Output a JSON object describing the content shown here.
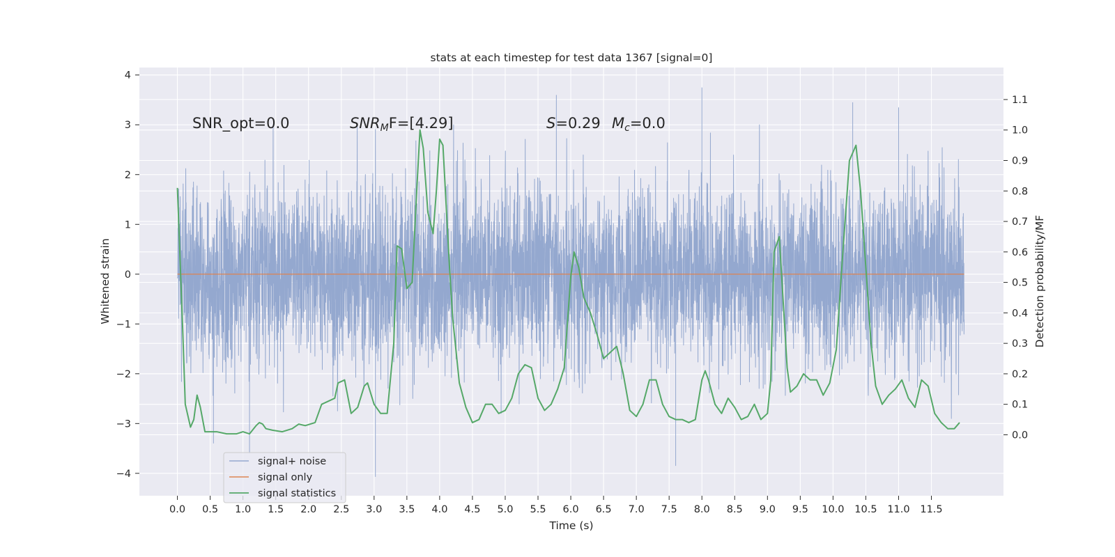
{
  "chart_data": {
    "type": "line",
    "title": "stats at each timestep for test data 1367 [signal=0]",
    "xlabel": "Time (s)",
    "ylabel": "Whitened strain",
    "y2label": "Detection probability/MF",
    "xlim": [
      -0.58,
      12.6
    ],
    "ylim": [
      -4.45,
      4.15
    ],
    "y2lim": [
      -0.2,
      1.205
    ],
    "x_ticks": [
      0.0,
      0.5,
      1.0,
      1.5,
      2.0,
      2.5,
      3.0,
      3.5,
      4.0,
      4.5,
      5.0,
      5.5,
      6.0,
      6.5,
      7.0,
      7.5,
      8.0,
      8.5,
      9.0,
      9.5,
      10.0,
      10.5,
      11.0,
      11.5
    ],
    "x_tick_labels": [
      "0.0",
      "0.5",
      "1.0",
      "1.5",
      "2.0",
      "2.5",
      "3.0",
      "3.5",
      "4.0",
      "4.5",
      "5.0",
      "5.5",
      "6.0",
      "6.5",
      "7.0",
      "7.5",
      "8.0",
      "8.5",
      "9.0",
      "9.5",
      "10.0",
      "10.5",
      "11.0",
      "11.5"
    ],
    "y_ticks": [
      -4,
      -3,
      -2,
      -1,
      0,
      1,
      2,
      3,
      4
    ],
    "y_tick_labels": [
      "−4",
      "−3",
      "−2",
      "−1",
      "0",
      "1",
      "2",
      "3",
      "4"
    ],
    "y2_ticks": [
      0.0,
      0.1,
      0.2,
      0.3,
      0.4,
      0.5,
      0.6,
      0.7,
      0.8,
      0.9,
      1.0,
      1.1
    ],
    "y2_tick_labels": [
      "0.0",
      "0.1",
      "0.2",
      "0.3",
      "0.4",
      "0.5",
      "0.6",
      "0.7",
      "0.8",
      "0.9",
      "1.0",
      "1.1"
    ],
    "annotations": {
      "snr_opt": "SNR_opt=0.0",
      "snr_mf_main": "SNR",
      "snr_mf_sub": "M",
      "snr_mf_rest": "F=[4.29]",
      "s_label": "S",
      "s_value": "=0.29",
      "mc_main": "M",
      "mc_sub": "c",
      "mc_value": "=0.0"
    },
    "legend": {
      "position": "lower-left",
      "entries": [
        "signal+ noise",
        "signal only",
        "signal statistics"
      ]
    },
    "colors": {
      "plot_bg": "#eaeaf2",
      "grid": "#ffffff",
      "noise": "#94a8cf",
      "signal_only": "#dd8452",
      "statistics": "#55a868"
    },
    "series": [
      {
        "name": "signal+ noise",
        "axis": "left",
        "description_type": "noise",
        "x_range": [
          0.0,
          12.0
        ],
        "typical_envelope": [
          -2.1,
          2.3
        ],
        "extreme_points": [
          [
            5.78,
            3.6
          ],
          [
            8.0,
            3.75
          ],
          [
            11.0,
            3.35
          ],
          [
            10.3,
            3.45
          ],
          [
            3.02,
            -4.07
          ],
          [
            7.6,
            -3.85
          ],
          [
            1.1,
            -3.6
          ],
          [
            0.55,
            -3.4
          ]
        ]
      },
      {
        "name": "signal only",
        "axis": "left",
        "x": [
          0.0,
          12.0
        ],
        "y": [
          0.0,
          0.0
        ]
      },
      {
        "name": "signal statistics",
        "axis": "right",
        "x": [
          0.0,
          0.08,
          0.12,
          0.2,
          0.25,
          0.3,
          0.35,
          0.42,
          0.5,
          0.6,
          0.75,
          0.9,
          1.0,
          1.1,
          1.2,
          1.25,
          1.3,
          1.35,
          1.45,
          1.6,
          1.75,
          1.85,
          1.95,
          2.1,
          2.2,
          2.3,
          2.4,
          2.45,
          2.55,
          2.65,
          2.75,
          2.85,
          2.9,
          3.0,
          3.1,
          3.2,
          3.3,
          3.35,
          3.42,
          3.5,
          3.58,
          3.65,
          3.7,
          3.75,
          3.82,
          3.9,
          3.95,
          4.0,
          4.05,
          4.1,
          4.15,
          4.2,
          4.3,
          4.4,
          4.5,
          4.6,
          4.7,
          4.8,
          4.9,
          5.0,
          5.1,
          5.2,
          5.3,
          5.4,
          5.5,
          5.6,
          5.7,
          5.8,
          5.9,
          6.0,
          6.05,
          6.12,
          6.2,
          6.3,
          6.4,
          6.5,
          6.6,
          6.7,
          6.8,
          6.9,
          7.0,
          7.1,
          7.2,
          7.3,
          7.4,
          7.5,
          7.6,
          7.7,
          7.8,
          7.9,
          8.0,
          8.05,
          8.1,
          8.2,
          8.3,
          8.4,
          8.5,
          8.6,
          8.7,
          8.8,
          8.9,
          9.0,
          9.05,
          9.1,
          9.18,
          9.25,
          9.3,
          9.35,
          9.45,
          9.55,
          9.65,
          9.75,
          9.85,
          9.95,
          10.05,
          10.15,
          10.25,
          10.35,
          10.42,
          10.5,
          10.58,
          10.65,
          10.75,
          10.85,
          10.95,
          11.05,
          11.15,
          11.25,
          11.35,
          11.45,
          11.55,
          11.65,
          11.75,
          11.85,
          11.93
        ],
        "y": [
          0.81,
          0.35,
          0.1,
          0.025,
          0.05,
          0.13,
          0.09,
          0.01,
          0.01,
          0.01,
          0.003,
          0.003,
          0.01,
          0.003,
          0.03,
          0.04,
          0.035,
          0.02,
          0.015,
          0.01,
          0.02,
          0.035,
          0.03,
          0.04,
          0.1,
          0.11,
          0.12,
          0.17,
          0.18,
          0.07,
          0.09,
          0.16,
          0.17,
          0.1,
          0.07,
          0.07,
          0.3,
          0.62,
          0.61,
          0.48,
          0.5,
          0.8,
          1.0,
          0.94,
          0.73,
          0.66,
          0.8,
          0.97,
          0.95,
          0.75,
          0.55,
          0.38,
          0.17,
          0.09,
          0.04,
          0.05,
          0.1,
          0.1,
          0.07,
          0.08,
          0.12,
          0.2,
          0.23,
          0.22,
          0.12,
          0.08,
          0.1,
          0.15,
          0.22,
          0.52,
          0.6,
          0.55,
          0.45,
          0.4,
          0.33,
          0.25,
          0.27,
          0.29,
          0.2,
          0.08,
          0.06,
          0.1,
          0.18,
          0.18,
          0.1,
          0.06,
          0.05,
          0.05,
          0.04,
          0.05,
          0.18,
          0.21,
          0.18,
          0.1,
          0.07,
          0.12,
          0.09,
          0.05,
          0.06,
          0.1,
          0.05,
          0.07,
          0.18,
          0.6,
          0.65,
          0.4,
          0.22,
          0.14,
          0.16,
          0.2,
          0.18,
          0.18,
          0.13,
          0.17,
          0.28,
          0.6,
          0.9,
          0.95,
          0.8,
          0.55,
          0.3,
          0.16,
          0.1,
          0.13,
          0.15,
          0.18,
          0.12,
          0.09,
          0.18,
          0.16,
          0.07,
          0.04,
          0.02,
          0.02,
          0.04
        ]
      }
    ]
  }
}
